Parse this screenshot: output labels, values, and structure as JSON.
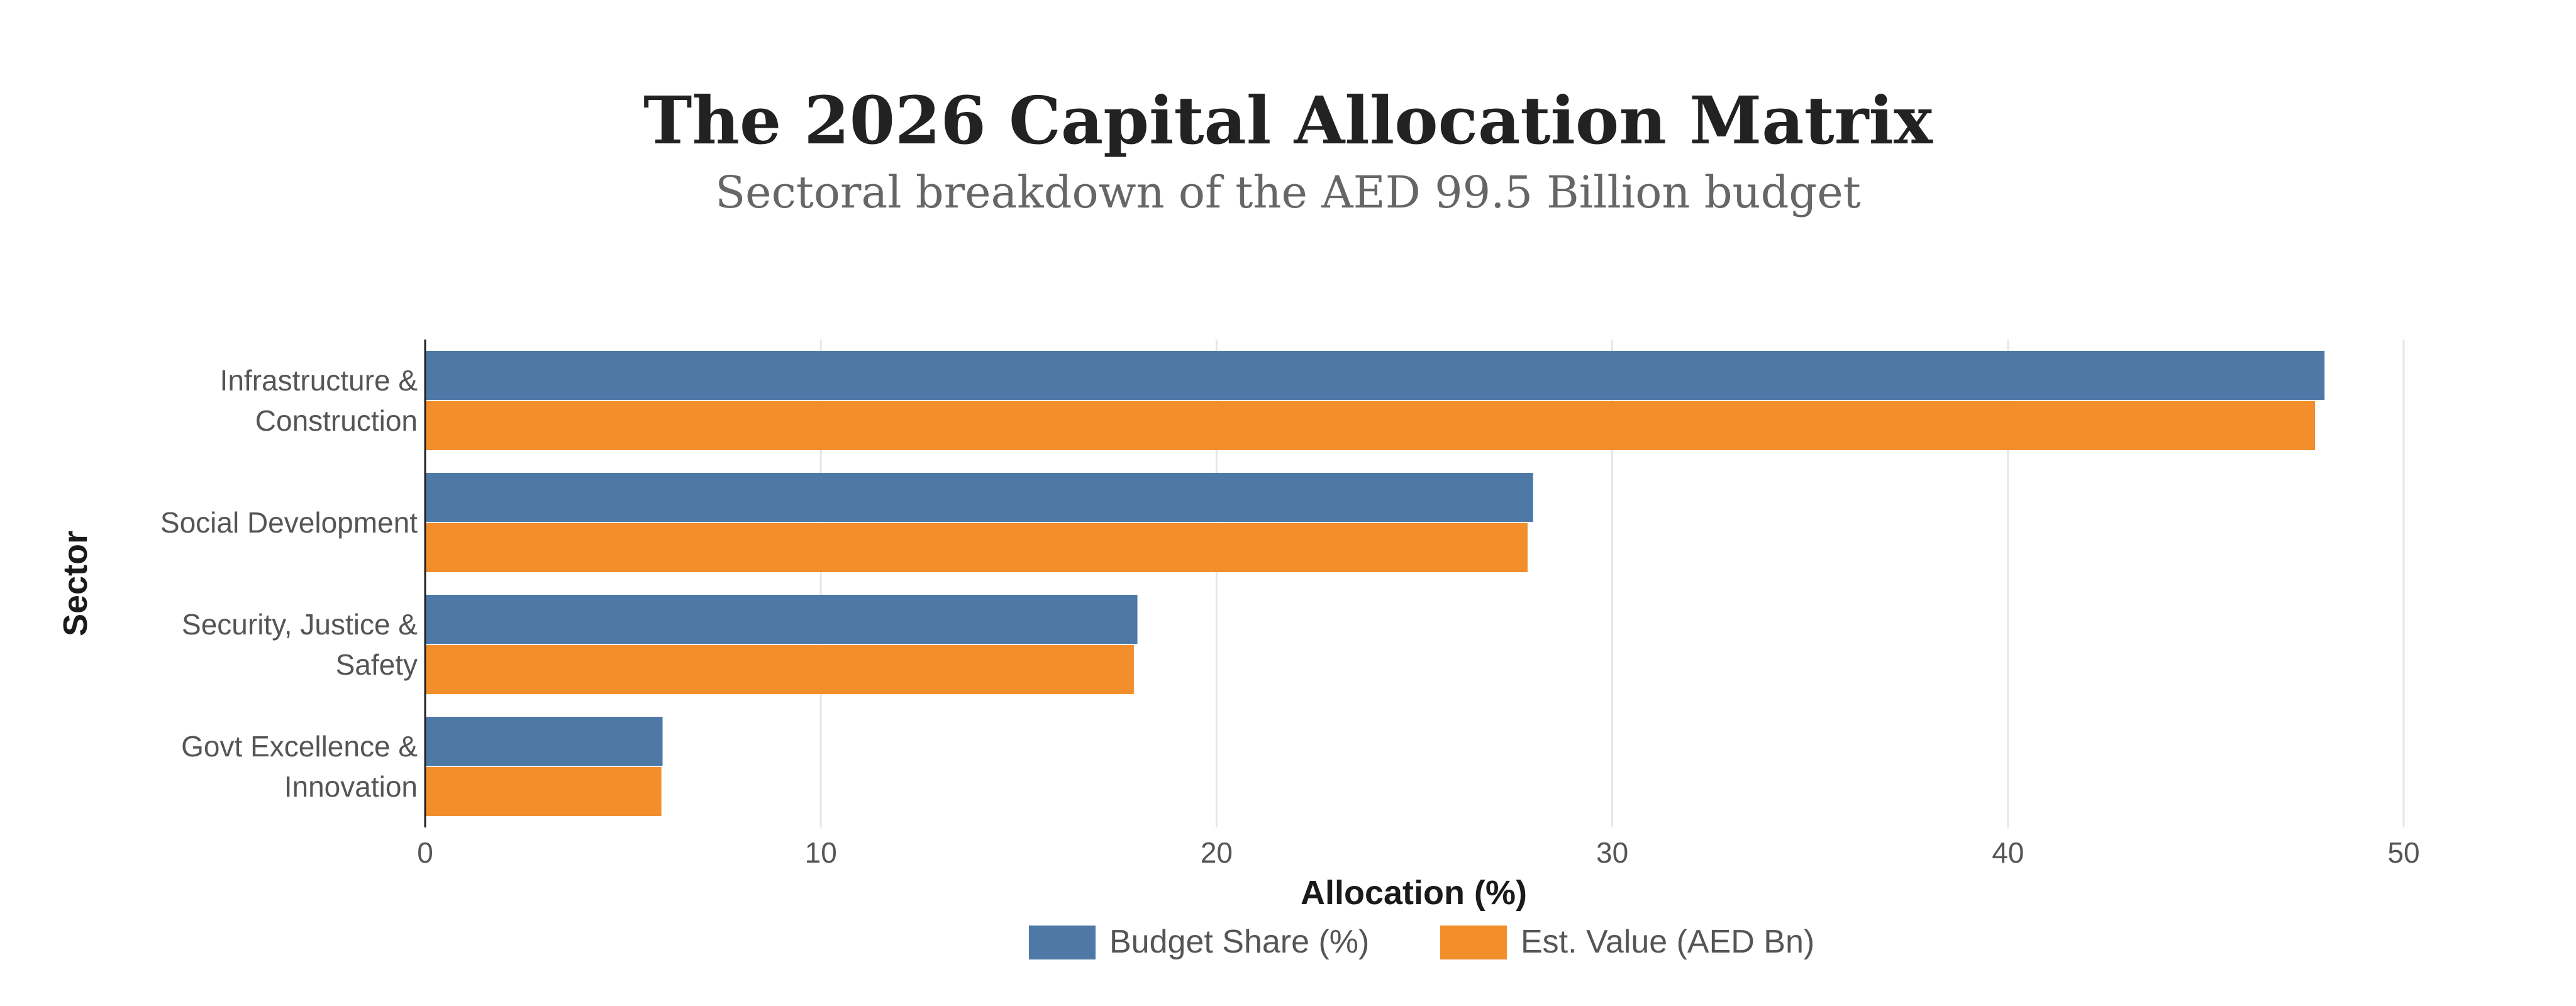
{
  "chart_data": {
    "type": "bar",
    "orientation": "horizontal",
    "title": "The 2026 Capital Allocation Matrix",
    "subtitle": "Sectoral breakdown of the AED 99.5 Billion budget",
    "xlabel": "Allocation (%)",
    "ylabel": "Sector",
    "xlim": [
      0,
      50
    ],
    "xticks": [
      "0",
      "10",
      "20",
      "30",
      "40",
      "50"
    ],
    "grid": true,
    "legend_position": "bottom-center",
    "categories": [
      [
        "Infrastructure &",
        "Construction"
      ],
      [
        "Social Development"
      ],
      [
        "Security, Justice &",
        "Safety"
      ],
      [
        "Govt Excellence &",
        "Innovation"
      ]
    ],
    "series": [
      {
        "name": "Budget Share (%)",
        "color": "#4e79a7",
        "values": [
          48,
          28,
          18,
          6
        ]
      },
      {
        "name": "Est. Value (AED Bn)",
        "color": "#f28e2b",
        "values": [
          47.76,
          27.86,
          17.91,
          5.97
        ]
      }
    ]
  }
}
